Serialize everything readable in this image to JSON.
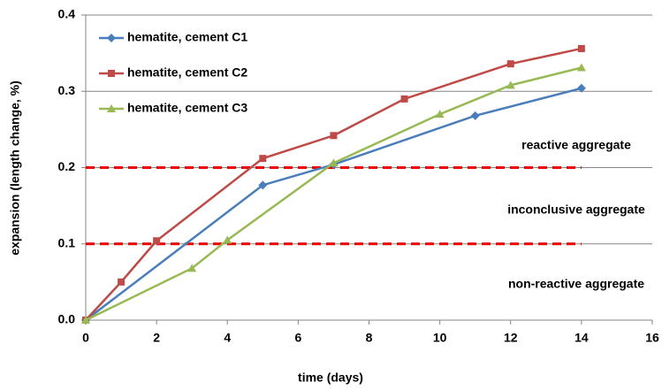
{
  "chart_data": {
    "type": "line",
    "x_label": "time (days)",
    "y_label": "expansion (length change, %)",
    "xlim": [
      0,
      16
    ],
    "xticks": [
      0,
      2,
      4,
      6,
      8,
      10,
      12,
      14,
      16
    ],
    "ylim": [
      0,
      0.4
    ],
    "yticks": [
      {
        "value": 0,
        "label": "0.0"
      },
      0.1,
      0.2,
      0.3,
      0.4
    ],
    "grid": true,
    "legend": "upper left",
    "series": [
      {
        "name": "hematite, cement C1",
        "color": "#4a7ebb",
        "marker": "diamond",
        "x": [
          0,
          5,
          7,
          11,
          14
        ],
        "values": [
          0,
          0.177,
          0.204,
          0.268,
          0.304
        ]
      },
      {
        "name": "hematite, cement C2",
        "color": "#be4b48",
        "marker": "square",
        "x": [
          0,
          1,
          2,
          5,
          7,
          9,
          12,
          14
        ],
        "values": [
          0,
          0.05,
          0.104,
          0.212,
          0.242,
          0.29,
          0.336,
          0.356
        ]
      },
      {
        "name": "hematite, cement C3",
        "color": "#98b954",
        "marker": "triangle",
        "x": [
          0,
          3,
          4,
          7,
          10,
          12,
          14
        ],
        "values": [
          0,
          0.068,
          0.105,
          0.206,
          0.27,
          0.308,
          0.331
        ]
      }
    ],
    "reference_lines": [
      0.2,
      0.1
    ],
    "reference_color": "#ee0000",
    "annotations": [
      "reactive aggregate",
      "inconclusive aggregate",
      "non-reactive aggregate"
    ]
  }
}
